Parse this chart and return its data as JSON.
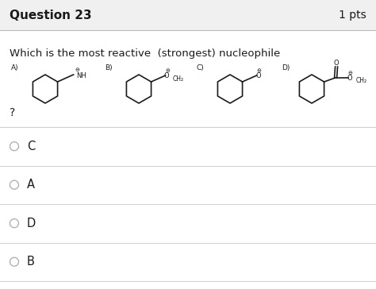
{
  "title_left": "Question 23",
  "title_right": "1 pts",
  "question_text": "Which is the most reactive  (strongest) nucleophile",
  "question_mark": "?",
  "answer_choices": [
    "C",
    "A",
    "D",
    "B"
  ],
  "bg_color": "#ffffff",
  "header_bg": "#f0f0f0",
  "text_color": "#1a1a1a",
  "line_color": "#d0d0d0",
  "header_line_color": "#bbbbbb",
  "ring_color": "#1a1a1a"
}
